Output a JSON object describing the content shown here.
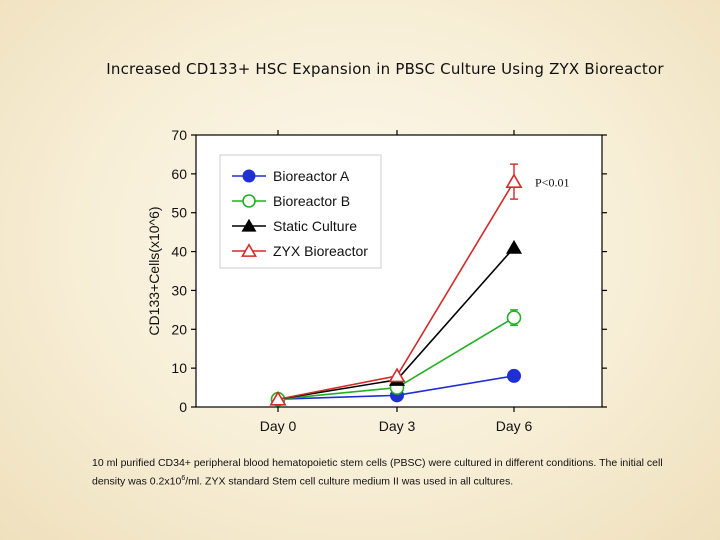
{
  "slide": {
    "title": "Increased CD133+ HSC Expansion in PBSC Culture Using ZYX Bioreactor",
    "caption_pre": "10 ml purified CD34+ peripheral blood hematopoietic stem cells (PBSC) were cultured in different conditions. The initial cell density was 0.2x10",
    "caption_sup": "6",
    "caption_post": "/ml. ZYX standard Stem cell culture medium II was used in all cultures."
  },
  "chart_data": {
    "type": "line",
    "title": "",
    "xlabel": "",
    "ylabel": "CD133+Cells(x10^6)",
    "categories": [
      "Day 0",
      "Day 3",
      "Day 6"
    ],
    "ylim": [
      0,
      70
    ],
    "yticks": [
      0,
      10,
      20,
      30,
      40,
      50,
      60,
      70
    ],
    "series": [
      {
        "name": "Bioreactor A",
        "values": [
          2,
          3,
          8
        ],
        "color": "#1f2fd6",
        "marker": "circle-filled"
      },
      {
        "name": "Bioreactor B",
        "values": [
          2,
          5,
          23
        ],
        "color": "#22b022",
        "marker": "circle-open",
        "error_last": 2
      },
      {
        "name": "Static Culture",
        "values": [
          2,
          7,
          41
        ],
        "color": "#000000",
        "marker": "triangle-filled"
      },
      {
        "name": "ZYX Bioreactor",
        "values": [
          2,
          8,
          58
        ],
        "color": "#d42a2a",
        "marker": "triangle-open",
        "error_last": 4.5
      }
    ],
    "annotation": "P<0.01",
    "legend_position": "top-left",
    "grid": false
  }
}
